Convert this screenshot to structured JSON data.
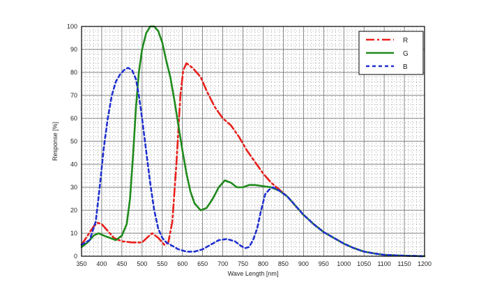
{
  "chart_data": {
    "type": "line",
    "title": "",
    "xlabel": "Wave Length [nm]",
    "ylabel": "Response  [%]",
    "xlim": [
      350,
      1200
    ],
    "ylim": [
      0,
      100
    ],
    "x_ticks": [
      350,
      400,
      450,
      500,
      550,
      600,
      650,
      700,
      750,
      800,
      850,
      900,
      950,
      1000,
      1050,
      1100,
      1150,
      1200
    ],
    "y_ticks": [
      0,
      10,
      20,
      30,
      40,
      50,
      60,
      70,
      80,
      90,
      100
    ],
    "grid": true,
    "legend_position": "top-right",
    "series": [
      {
        "name": "R",
        "color": "#e8201c",
        "dash": "dash-dot",
        "points": [
          [
            350,
            5
          ],
          [
            365,
            9
          ],
          [
            380,
            13
          ],
          [
            390,
            14.5
          ],
          [
            400,
            14
          ],
          [
            415,
            11
          ],
          [
            430,
            8
          ],
          [
            450,
            6.5
          ],
          [
            475,
            6
          ],
          [
            500,
            6
          ],
          [
            515,
            8.5
          ],
          [
            525,
            10
          ],
          [
            540,
            8
          ],
          [
            555,
            5
          ],
          [
            565,
            6
          ],
          [
            575,
            15
          ],
          [
            585,
            40
          ],
          [
            595,
            70
          ],
          [
            602,
            81
          ],
          [
            610,
            84
          ],
          [
            625,
            82
          ],
          [
            645,
            78
          ],
          [
            660,
            72
          ],
          [
            680,
            65
          ],
          [
            700,
            60
          ],
          [
            720,
            57
          ],
          [
            740,
            52
          ],
          [
            760,
            46
          ],
          [
            780,
            41
          ],
          [
            800,
            36
          ],
          [
            820,
            32
          ],
          [
            840,
            29
          ],
          [
            860,
            26
          ],
          [
            880,
            22
          ],
          [
            900,
            18
          ],
          [
            925,
            14
          ],
          [
            950,
            10.5
          ],
          [
            975,
            8
          ],
          [
            1000,
            5.5
          ],
          [
            1025,
            3.5
          ],
          [
            1050,
            2
          ],
          [
            1075,
            1.2
          ],
          [
            1100,
            0.6
          ],
          [
            1150,
            0.2
          ],
          [
            1200,
            0
          ]
        ]
      },
      {
        "name": "G",
        "color": "#1f8a1c",
        "dash": "solid",
        "points": [
          [
            350,
            4
          ],
          [
            365,
            6
          ],
          [
            380,
            9
          ],
          [
            392,
            10
          ],
          [
            405,
            9
          ],
          [
            420,
            8
          ],
          [
            435,
            7
          ],
          [
            450,
            9
          ],
          [
            462,
            14
          ],
          [
            470,
            25
          ],
          [
            478,
            45
          ],
          [
            485,
            65
          ],
          [
            492,
            80
          ],
          [
            500,
            90
          ],
          [
            510,
            97
          ],
          [
            520,
            100
          ],
          [
            530,
            100
          ],
          [
            540,
            98
          ],
          [
            550,
            93
          ],
          [
            560,
            85
          ],
          [
            570,
            78
          ],
          [
            580,
            68
          ],
          [
            590,
            57
          ],
          [
            600,
            46
          ],
          [
            610,
            36
          ],
          [
            620,
            28
          ],
          [
            630,
            23
          ],
          [
            645,
            20
          ],
          [
            660,
            21
          ],
          [
            675,
            25
          ],
          [
            690,
            30
          ],
          [
            705,
            33
          ],
          [
            720,
            32
          ],
          [
            735,
            30
          ],
          [
            750,
            30
          ],
          [
            765,
            31
          ],
          [
            780,
            31
          ],
          [
            800,
            30.5
          ],
          [
            820,
            30
          ],
          [
            840,
            28.5
          ],
          [
            860,
            26
          ],
          [
            880,
            22
          ],
          [
            900,
            18
          ],
          [
            925,
            14
          ],
          [
            950,
            10.5
          ],
          [
            975,
            8
          ],
          [
            1000,
            5.5
          ],
          [
            1025,
            3.5
          ],
          [
            1050,
            2
          ],
          [
            1075,
            1.2
          ],
          [
            1100,
            0.6
          ],
          [
            1150,
            0.2
          ],
          [
            1200,
            0
          ]
        ]
      },
      {
        "name": "B",
        "color": "#2030d0",
        "dash": "dotted",
        "points": [
          [
            350,
            5
          ],
          [
            370,
            7
          ],
          [
            385,
            15
          ],
          [
            395,
            30
          ],
          [
            405,
            47
          ],
          [
            415,
            60
          ],
          [
            425,
            70
          ],
          [
            435,
            76
          ],
          [
            445,
            79
          ],
          [
            455,
            81
          ],
          [
            465,
            82
          ],
          [
            475,
            81
          ],
          [
            485,
            77
          ],
          [
            492,
            70
          ],
          [
            500,
            60
          ],
          [
            510,
            46
          ],
          [
            520,
            32
          ],
          [
            530,
            20
          ],
          [
            540,
            12
          ],
          [
            550,
            8
          ],
          [
            560,
            6
          ],
          [
            575,
            4.5
          ],
          [
            590,
            3
          ],
          [
            610,
            2
          ],
          [
            630,
            2
          ],
          [
            650,
            3
          ],
          [
            670,
            5
          ],
          [
            690,
            7
          ],
          [
            710,
            7.5
          ],
          [
            730,
            6.5
          ],
          [
            745,
            4.5
          ],
          [
            755,
            3.5
          ],
          [
            765,
            4
          ],
          [
            775,
            7
          ],
          [
            785,
            12
          ],
          [
            795,
            20
          ],
          [
            805,
            27
          ],
          [
            815,
            29
          ],
          [
            825,
            30
          ],
          [
            840,
            28.5
          ],
          [
            860,
            26
          ],
          [
            880,
            22
          ],
          [
            900,
            18
          ],
          [
            925,
            14
          ],
          [
            950,
            10.5
          ],
          [
            975,
            8
          ],
          [
            1000,
            5.5
          ],
          [
            1025,
            3.5
          ],
          [
            1050,
            2
          ],
          [
            1075,
            1.2
          ],
          [
            1100,
            0.6
          ],
          [
            1150,
            0.2
          ],
          [
            1200,
            0
          ]
        ]
      }
    ]
  }
}
